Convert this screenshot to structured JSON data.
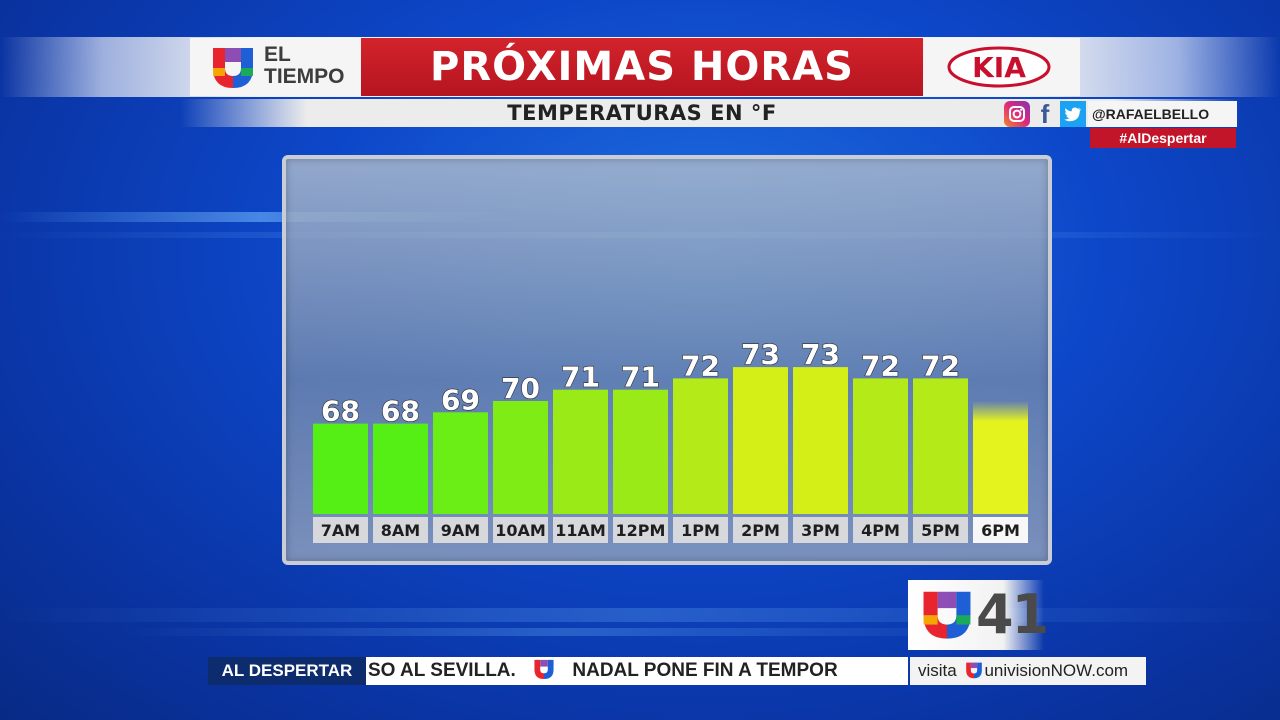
{
  "header": {
    "brand_line1": "EL",
    "brand_line2": "TIEMPO",
    "title": "PRÓXIMAS HORAS",
    "sponsor": "KIA",
    "subtitle": "TEMPERATURAS EN °F"
  },
  "social": {
    "handle": "@RAFAELBELLO",
    "hashtag": "#AlDespertar",
    "icons": [
      "instagram-icon",
      "facebook-icon",
      "twitter-icon"
    ]
  },
  "chart_data": {
    "type": "bar",
    "title": "PRÓXIMAS HORAS",
    "subtitle": "TEMPERATURAS EN °F",
    "categories": [
      "7AM",
      "8AM",
      "9AM",
      "10AM",
      "11AM",
      "12PM",
      "1PM",
      "2PM",
      "3PM",
      "4PM",
      "5PM",
      "6PM"
    ],
    "values": [
      68,
      68,
      69,
      70,
      71,
      71,
      72,
      73,
      73,
      72,
      72,
      70
    ],
    "labels": [
      "68",
      "68",
      "69",
      "70",
      "71",
      "71",
      "72",
      "73",
      "73",
      "72",
      "72",
      ""
    ],
    "colors": [
      "#55ee15",
      "#55ee15",
      "#6aee15",
      "#80ec16",
      "#9aea18",
      "#9aea18",
      "#b4ea18",
      "#d4ee18",
      "#d4ee18",
      "#b4ea18",
      "#b4ea18",
      "#e4f21e"
    ],
    "grid": false,
    "legend": "none"
  },
  "ticker": {
    "label": "AL DESPERTAR",
    "text_before": "SO AL SEVILLA.",
    "text_after": "NADAL PONE FIN A TEMPOR",
    "visit": "visita",
    "site": "univisionNOW.com"
  },
  "channel": {
    "number": "41"
  }
}
